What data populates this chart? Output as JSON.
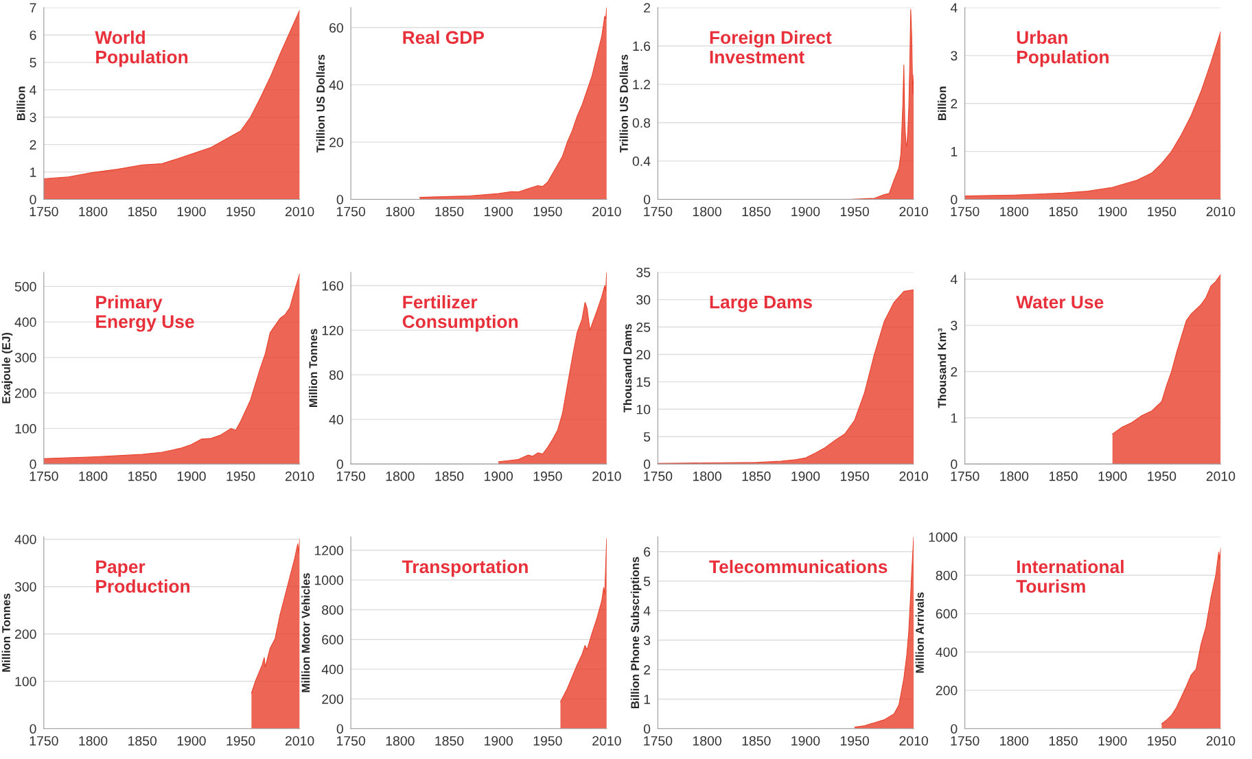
{
  "chart_data": [
    {
      "type": "area",
      "title": "World Population",
      "ylabel": "Billion",
      "xlim": [
        1750,
        2010
      ],
      "xticks": [
        1750,
        1800,
        1850,
        1900,
        1950,
        2010
      ],
      "ylim": [
        0,
        7
      ],
      "yticks": [
        0,
        1,
        2,
        3,
        4,
        5,
        6,
        7
      ],
      "grid": "y",
      "series": [
        {
          "color": "#e8402a",
          "x": [
            1750,
            1775,
            1800,
            1825,
            1850,
            1870,
            1900,
            1920,
            1940,
            1950,
            1960,
            1970,
            1980,
            1990,
            2000,
            2010
          ],
          "values": [
            0.75,
            0.82,
            0.98,
            1.1,
            1.26,
            1.3,
            1.65,
            1.9,
            2.3,
            2.5,
            3.0,
            3.7,
            4.45,
            5.3,
            6.1,
            6.9
          ]
        }
      ]
    },
    {
      "type": "area",
      "title": "Real GDP",
      "ylabel": "Trillion US Dollars",
      "xlim": [
        1750,
        2010
      ],
      "xticks": [
        1750,
        1800,
        1850,
        1900,
        1950,
        2010
      ],
      "ylim": [
        0,
        67
      ],
      "yticks": [
        0,
        20,
        40,
        60
      ],
      "grid": "y",
      "series": [
        {
          "color": "#e8402a",
          "x": [
            1820,
            1850,
            1870,
            1900,
            1913,
            1920,
            1930,
            1940,
            1945,
            1950,
            1955,
            1960,
            1965,
            1970,
            1975,
            1980,
            1985,
            1990,
            1995,
            2000,
            2005,
            2008,
            2009,
            2010
          ],
          "values": [
            0.7,
            1.0,
            1.2,
            2.0,
            2.7,
            2.6,
            3.7,
            4.8,
            4.5,
            6,
            9,
            12,
            15,
            20,
            24,
            29,
            33,
            38,
            43,
            50,
            57,
            64,
            63,
            67
          ]
        }
      ]
    },
    {
      "type": "area",
      "title": "Foreign Direct Investment",
      "ylabel": "Trillion US Dollars",
      "xlim": [
        1750,
        2010
      ],
      "xticks": [
        1750,
        1800,
        1850,
        1900,
        1950,
        2010
      ],
      "ylim": [
        0,
        2
      ],
      "yticks": [
        0,
        0.4,
        0.8,
        1.2,
        1.6,
        2
      ],
      "grid": "y",
      "series": [
        {
          "color": "#e8402a",
          "x": [
            1945,
            1970,
            1975,
            1980,
            1985,
            1990,
            1995,
            1997,
            1999,
            2000,
            2001,
            2002,
            2003,
            2004,
            2005,
            2006,
            2007,
            2008,
            2009,
            2010
          ],
          "values": [
            0,
            0.01,
            0.03,
            0.05,
            0.06,
            0.2,
            0.33,
            0.47,
            1.0,
            1.4,
            0.8,
            0.6,
            0.55,
            0.7,
            0.95,
            1.4,
            1.98,
            1.7,
            1.1,
            1.3
          ]
        }
      ]
    },
    {
      "type": "area",
      "title": "Urban Population",
      "ylabel": "Billion",
      "xlim": [
        1750,
        2010
      ],
      "xticks": [
        1750,
        1800,
        1850,
        1900,
        1950,
        2010
      ],
      "ylim": [
        0,
        4
      ],
      "yticks": [
        0,
        1,
        2,
        3,
        4
      ],
      "grid": "y",
      "series": [
        {
          "color": "#e8402a",
          "x": [
            1750,
            1800,
            1850,
            1875,
            1900,
            1925,
            1940,
            1950,
            1960,
            1970,
            1980,
            1990,
            2000,
            2010
          ],
          "values": [
            0.07,
            0.09,
            0.13,
            0.17,
            0.25,
            0.4,
            0.55,
            0.75,
            1.0,
            1.35,
            1.75,
            2.25,
            2.85,
            3.5
          ]
        }
      ]
    },
    {
      "type": "area",
      "title": "Primary Energy Use",
      "ylabel": "Exajoule (EJ)",
      "xlim": [
        1750,
        2010
      ],
      "xticks": [
        1750,
        1800,
        1850,
        1900,
        1950,
        2010
      ],
      "ylim": [
        0,
        540
      ],
      "yticks": [
        0,
        100,
        200,
        300,
        400,
        500
      ],
      "grid": "y",
      "series": [
        {
          "color": "#e8402a",
          "x": [
            1750,
            1800,
            1850,
            1870,
            1890,
            1900,
            1910,
            1920,
            1930,
            1940,
            1945,
            1950,
            1960,
            1970,
            1975,
            1980,
            1985,
            1990,
            1995,
            2000,
            2005,
            2010
          ],
          "values": [
            15,
            20,
            27,
            33,
            45,
            55,
            70,
            72,
            82,
            100,
            95,
            120,
            180,
            270,
            310,
            370,
            390,
            410,
            420,
            440,
            490,
            535
          ]
        }
      ]
    },
    {
      "type": "area",
      "title": "Fertilizer Consumption",
      "ylabel": "Million Tonnes",
      "xlim": [
        1750,
        2010
      ],
      "xticks": [
        1750,
        1800,
        1850,
        1900,
        1950,
        2010
      ],
      "ylim": [
        0,
        172
      ],
      "yticks": [
        0,
        40,
        80,
        120,
        160
      ],
      "grid": "y",
      "series": [
        {
          "color": "#e8402a",
          "x": [
            1900,
            1910,
            1920,
            1930,
            1935,
            1940,
            1945,
            1950,
            1955,
            1960,
            1965,
            1970,
            1975,
            1980,
            1985,
            1988,
            1990,
            1993,
            1995,
            2000,
            2005,
            2008,
            2009,
            2010
          ],
          "values": [
            2,
            3,
            4,
            8,
            7,
            10,
            9,
            15,
            22,
            30,
            45,
            70,
            95,
            118,
            130,
            145,
            140,
            120,
            125,
            137,
            150,
            160,
            155,
            172
          ]
        }
      ]
    },
    {
      "type": "area",
      "title": "Large Dams",
      "ylabel": "Thousand Dams",
      "xlim": [
        1750,
        2010
      ],
      "xticks": [
        1750,
        1800,
        1850,
        1900,
        1950,
        2010
      ],
      "ylim": [
        0,
        35
      ],
      "yticks": [
        0,
        5,
        10,
        15,
        20,
        25,
        30,
        35
      ],
      "grid": "y",
      "series": [
        {
          "color": "#e8402a",
          "x": [
            1750,
            1800,
            1850,
            1875,
            1890,
            1900,
            1910,
            1920,
            1930,
            1940,
            1950,
            1960,
            1970,
            1980,
            1990,
            2000,
            2010
          ],
          "values": [
            0.1,
            0.2,
            0.3,
            0.5,
            0.8,
            1.1,
            2,
            3,
            4.3,
            5.5,
            8,
            13,
            20,
            26,
            29.5,
            31.5,
            31.8
          ]
        }
      ]
    },
    {
      "type": "area",
      "title": "Water Use",
      "ylabel": "Thousand Km³",
      "xlim": [
        1750,
        2010
      ],
      "xticks": [
        1750,
        1800,
        1850,
        1900,
        1950,
        2010
      ],
      "ylim": [
        0,
        4.15
      ],
      "yticks": [
        0,
        1,
        2,
        3,
        4
      ],
      "grid": "y",
      "series": [
        {
          "color": "#e8402a",
          "x": [
            1900,
            1910,
            1920,
            1930,
            1940,
            1950,
            1955,
            1960,
            1965,
            1970,
            1975,
            1980,
            1985,
            1990,
            1995,
            2000,
            2005,
            2010
          ],
          "values": [
            0.65,
            0.8,
            0.9,
            1.05,
            1.15,
            1.35,
            1.7,
            2.0,
            2.4,
            2.75,
            3.1,
            3.25,
            3.35,
            3.45,
            3.6,
            3.85,
            3.95,
            4.1
          ]
        }
      ]
    },
    {
      "type": "area",
      "title": "Paper Production",
      "ylabel": "Million Tonnes",
      "xlim": [
        1750,
        2010
      ],
      "xticks": [
        1750,
        1800,
        1850,
        1900,
        1950,
        2010
      ],
      "ylim": [
        0,
        405
      ],
      "yticks": [
        0,
        100,
        200,
        300,
        400
      ],
      "grid": "y",
      "series": [
        {
          "color": "#e8402a",
          "x": [
            1961,
            1965,
            1970,
            1972,
            1974,
            1975,
            1980,
            1985,
            1990,
            1995,
            2000,
            2005,
            2008,
            2009,
            2010
          ],
          "values": [
            75,
            100,
            125,
            135,
            150,
            130,
            170,
            190,
            240,
            280,
            320,
            360,
            390,
            370,
            400
          ]
        }
      ]
    },
    {
      "type": "area",
      "title": "Transportation",
      "ylabel": "Million Motor Vehicles",
      "xlim": [
        1750,
        2010
      ],
      "xticks": [
        1750,
        1800,
        1850,
        1900,
        1950,
        2010
      ],
      "ylim": [
        0,
        1290
      ],
      "yticks": [
        0,
        200,
        400,
        600,
        800,
        1000,
        1200
      ],
      "grid": "y",
      "series": [
        {
          "color": "#e8402a",
          "x": [
            1963,
            1970,
            1975,
            1980,
            1985,
            1988,
            1990,
            1995,
            2000,
            2005,
            2007,
            2008,
            2010
          ],
          "values": [
            180,
            270,
            350,
            430,
            500,
            560,
            530,
            640,
            740,
            860,
            950,
            900,
            1280
          ]
        }
      ]
    },
    {
      "type": "area",
      "title": "Telecommunications",
      "ylabel": "Billion Phone Subscriptions",
      "xlim": [
        1750,
        2010
      ],
      "xticks": [
        1750,
        1800,
        1850,
        1900,
        1950,
        2010
      ],
      "ylim": [
        0,
        6.5
      ],
      "yticks": [
        0,
        1,
        2,
        3,
        4,
        5,
        6
      ],
      "grid": "y",
      "series": [
        {
          "color": "#e8402a",
          "x": [
            1950,
            1960,
            1970,
            1980,
            1990,
            1995,
            2000,
            2003,
            2005,
            2007,
            2008,
            2010
          ],
          "values": [
            0.05,
            0.1,
            0.2,
            0.3,
            0.5,
            0.8,
            1.7,
            2.5,
            3.3,
            4.6,
            5.3,
            6.5
          ]
        }
      ]
    },
    {
      "type": "area",
      "title": "International Tourism",
      "ylabel": "Million Arrivals",
      "xlim": [
        1750,
        2010
      ],
      "xticks": [
        1750,
        1800,
        1850,
        1900,
        1950,
        2010
      ],
      "ylim": [
        0,
        1000
      ],
      "yticks": [
        0,
        200,
        400,
        600,
        800,
        1000
      ],
      "grid": "y",
      "series": [
        {
          "color": "#e8402a",
          "x": [
            1950,
            1955,
            1960,
            1965,
            1970,
            1975,
            1980,
            1985,
            1990,
            1995,
            2000,
            2005,
            2008,
            2009,
            2010
          ],
          "values": [
            25,
            45,
            70,
            110,
            165,
            220,
            280,
            310,
            440,
            530,
            680,
            800,
            920,
            880,
            940
          ]
        }
      ]
    }
  ]
}
